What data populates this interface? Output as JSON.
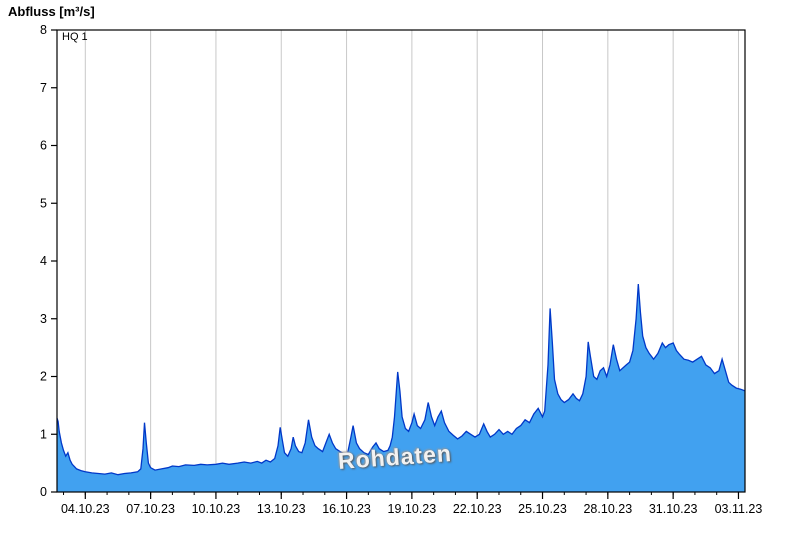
{
  "chart_data": {
    "type": "area",
    "title": "Abfluss [m³/s]",
    "watermark": "Rohdaten",
    "threshold": {
      "label": "HQ 1",
      "value": 8
    },
    "ylim": [
      0,
      8
    ],
    "y_ticks": [
      0,
      1,
      2,
      3,
      4,
      5,
      6,
      7,
      8
    ],
    "xlim_days": [
      -1.3,
      30.3
    ],
    "x_ticks": [
      {
        "day": 0,
        "label": "04.10.23"
      },
      {
        "day": 3,
        "label": "07.10.23"
      },
      {
        "day": 6,
        "label": "10.10.23"
      },
      {
        "day": 9,
        "label": "13.10.23"
      },
      {
        "day": 12,
        "label": "16.10.23"
      },
      {
        "day": 15,
        "label": "19.10.23"
      },
      {
        "day": 18,
        "label": "22.10.23"
      },
      {
        "day": 21,
        "label": "25.10.23"
      },
      {
        "day": 24,
        "label": "28.10.23"
      },
      {
        "day": 27,
        "label": "31.10.23"
      },
      {
        "day": 30,
        "label": "03.11.23"
      }
    ],
    "grid": "vertical-only",
    "legend": "none",
    "colors": {
      "fill": "#41A1F0",
      "stroke": "#0038C8",
      "grid": "#c8c8c8",
      "axis": "#000000"
    },
    "series": [
      {
        "name": "Abfluss Rohdaten",
        "points": [
          [
            -1.3,
            1.28
          ],
          [
            -1.25,
            1.22
          ],
          [
            -1.2,
            1.05
          ],
          [
            -1.1,
            0.85
          ],
          [
            -1.0,
            0.72
          ],
          [
            -0.9,
            0.62
          ],
          [
            -0.8,
            0.68
          ],
          [
            -0.7,
            0.55
          ],
          [
            -0.6,
            0.48
          ],
          [
            -0.5,
            0.44
          ],
          [
            -0.4,
            0.4
          ],
          [
            -0.2,
            0.37
          ],
          [
            0.0,
            0.35
          ],
          [
            0.3,
            0.33
          ],
          [
            0.6,
            0.32
          ],
          [
            0.9,
            0.31
          ],
          [
            1.2,
            0.33
          ],
          [
            1.5,
            0.3
          ],
          [
            1.8,
            0.32
          ],
          [
            2.1,
            0.33
          ],
          [
            2.4,
            0.35
          ],
          [
            2.55,
            0.4
          ],
          [
            2.65,
            0.75
          ],
          [
            2.72,
            1.2
          ],
          [
            2.8,
            0.85
          ],
          [
            2.9,
            0.5
          ],
          [
            3.0,
            0.42
          ],
          [
            3.2,
            0.38
          ],
          [
            3.5,
            0.4
          ],
          [
            3.8,
            0.42
          ],
          [
            4.0,
            0.45
          ],
          [
            4.3,
            0.44
          ],
          [
            4.6,
            0.47
          ],
          [
            5.0,
            0.46
          ],
          [
            5.3,
            0.48
          ],
          [
            5.6,
            0.47
          ],
          [
            6.0,
            0.48
          ],
          [
            6.3,
            0.5
          ],
          [
            6.6,
            0.48
          ],
          [
            7.0,
            0.5
          ],
          [
            7.3,
            0.52
          ],
          [
            7.6,
            0.5
          ],
          [
            7.9,
            0.53
          ],
          [
            8.1,
            0.5
          ],
          [
            8.3,
            0.55
          ],
          [
            8.5,
            0.52
          ],
          [
            8.7,
            0.58
          ],
          [
            8.85,
            0.8
          ],
          [
            8.95,
            1.12
          ],
          [
            9.05,
            0.9
          ],
          [
            9.15,
            0.68
          ],
          [
            9.3,
            0.62
          ],
          [
            9.45,
            0.75
          ],
          [
            9.55,
            0.95
          ],
          [
            9.65,
            0.8
          ],
          [
            9.8,
            0.7
          ],
          [
            9.95,
            0.68
          ],
          [
            10.1,
            0.85
          ],
          [
            10.25,
            1.25
          ],
          [
            10.4,
            0.95
          ],
          [
            10.55,
            0.8
          ],
          [
            10.7,
            0.75
          ],
          [
            10.9,
            0.7
          ],
          [
            11.05,
            0.85
          ],
          [
            11.2,
            1.0
          ],
          [
            11.35,
            0.85
          ],
          [
            11.5,
            0.75
          ],
          [
            11.7,
            0.7
          ],
          [
            11.9,
            0.66
          ],
          [
            12.05,
            0.68
          ],
          [
            12.2,
            0.95
          ],
          [
            12.3,
            1.15
          ],
          [
            12.45,
            0.85
          ],
          [
            12.6,
            0.75
          ],
          [
            12.8,
            0.68
          ],
          [
            13.0,
            0.65
          ],
          [
            13.2,
            0.78
          ],
          [
            13.35,
            0.85
          ],
          [
            13.5,
            0.75
          ],
          [
            13.7,
            0.7
          ],
          [
            13.9,
            0.72
          ],
          [
            14.0,
            0.8
          ],
          [
            14.1,
            0.95
          ],
          [
            14.2,
            1.3
          ],
          [
            14.35,
            2.08
          ],
          [
            14.45,
            1.75
          ],
          [
            14.55,
            1.3
          ],
          [
            14.7,
            1.1
          ],
          [
            14.85,
            1.05
          ],
          [
            15.0,
            1.2
          ],
          [
            15.1,
            1.35
          ],
          [
            15.25,
            1.15
          ],
          [
            15.4,
            1.1
          ],
          [
            15.6,
            1.25
          ],
          [
            15.75,
            1.55
          ],
          [
            15.9,
            1.3
          ],
          [
            16.05,
            1.15
          ],
          [
            16.2,
            1.3
          ],
          [
            16.35,
            1.4
          ],
          [
            16.5,
            1.2
          ],
          [
            16.7,
            1.05
          ],
          [
            16.9,
            0.98
          ],
          [
            17.1,
            0.92
          ],
          [
            17.3,
            0.97
          ],
          [
            17.5,
            1.05
          ],
          [
            17.7,
            1.0
          ],
          [
            17.9,
            0.95
          ],
          [
            18.1,
            1.0
          ],
          [
            18.3,
            1.18
          ],
          [
            18.45,
            1.05
          ],
          [
            18.6,
            0.95
          ],
          [
            18.8,
            1.0
          ],
          [
            19.0,
            1.08
          ],
          [
            19.2,
            1.0
          ],
          [
            19.4,
            1.05
          ],
          [
            19.6,
            1.0
          ],
          [
            19.8,
            1.1
          ],
          [
            20.0,
            1.15
          ],
          [
            20.2,
            1.25
          ],
          [
            20.4,
            1.2
          ],
          [
            20.6,
            1.35
          ],
          [
            20.8,
            1.45
          ],
          [
            21.0,
            1.3
          ],
          [
            21.1,
            1.4
          ],
          [
            21.25,
            2.2
          ],
          [
            21.35,
            3.18
          ],
          [
            21.45,
            2.6
          ],
          [
            21.55,
            1.95
          ],
          [
            21.7,
            1.7
          ],
          [
            21.85,
            1.6
          ],
          [
            22.0,
            1.55
          ],
          [
            22.2,
            1.6
          ],
          [
            22.4,
            1.7
          ],
          [
            22.55,
            1.62
          ],
          [
            22.7,
            1.58
          ],
          [
            22.85,
            1.7
          ],
          [
            23.0,
            2.0
          ],
          [
            23.1,
            2.6
          ],
          [
            23.2,
            2.35
          ],
          [
            23.35,
            2.0
          ],
          [
            23.5,
            1.95
          ],
          [
            23.65,
            2.1
          ],
          [
            23.8,
            2.15
          ],
          [
            23.95,
            2.0
          ],
          [
            24.1,
            2.2
          ],
          [
            24.25,
            2.55
          ],
          [
            24.4,
            2.3
          ],
          [
            24.55,
            2.1
          ],
          [
            24.7,
            2.15
          ],
          [
            24.85,
            2.2
          ],
          [
            25.0,
            2.25
          ],
          [
            25.15,
            2.45
          ],
          [
            25.3,
            3.0
          ],
          [
            25.4,
            3.6
          ],
          [
            25.5,
            3.1
          ],
          [
            25.6,
            2.7
          ],
          [
            25.75,
            2.5
          ],
          [
            25.9,
            2.4
          ],
          [
            26.1,
            2.3
          ],
          [
            26.3,
            2.4
          ],
          [
            26.5,
            2.58
          ],
          [
            26.65,
            2.5
          ],
          [
            26.8,
            2.55
          ],
          [
            27.0,
            2.58
          ],
          [
            27.15,
            2.45
          ],
          [
            27.3,
            2.38
          ],
          [
            27.5,
            2.3
          ],
          [
            27.7,
            2.28
          ],
          [
            27.9,
            2.25
          ],
          [
            28.1,
            2.3
          ],
          [
            28.3,
            2.35
          ],
          [
            28.5,
            2.2
          ],
          [
            28.7,
            2.15
          ],
          [
            28.9,
            2.05
          ],
          [
            29.1,
            2.1
          ],
          [
            29.25,
            2.3
          ],
          [
            29.4,
            2.1
          ],
          [
            29.55,
            1.9
          ],
          [
            29.7,
            1.85
          ],
          [
            29.9,
            1.8
          ],
          [
            30.1,
            1.78
          ],
          [
            30.3,
            1.75
          ]
        ]
      }
    ]
  }
}
